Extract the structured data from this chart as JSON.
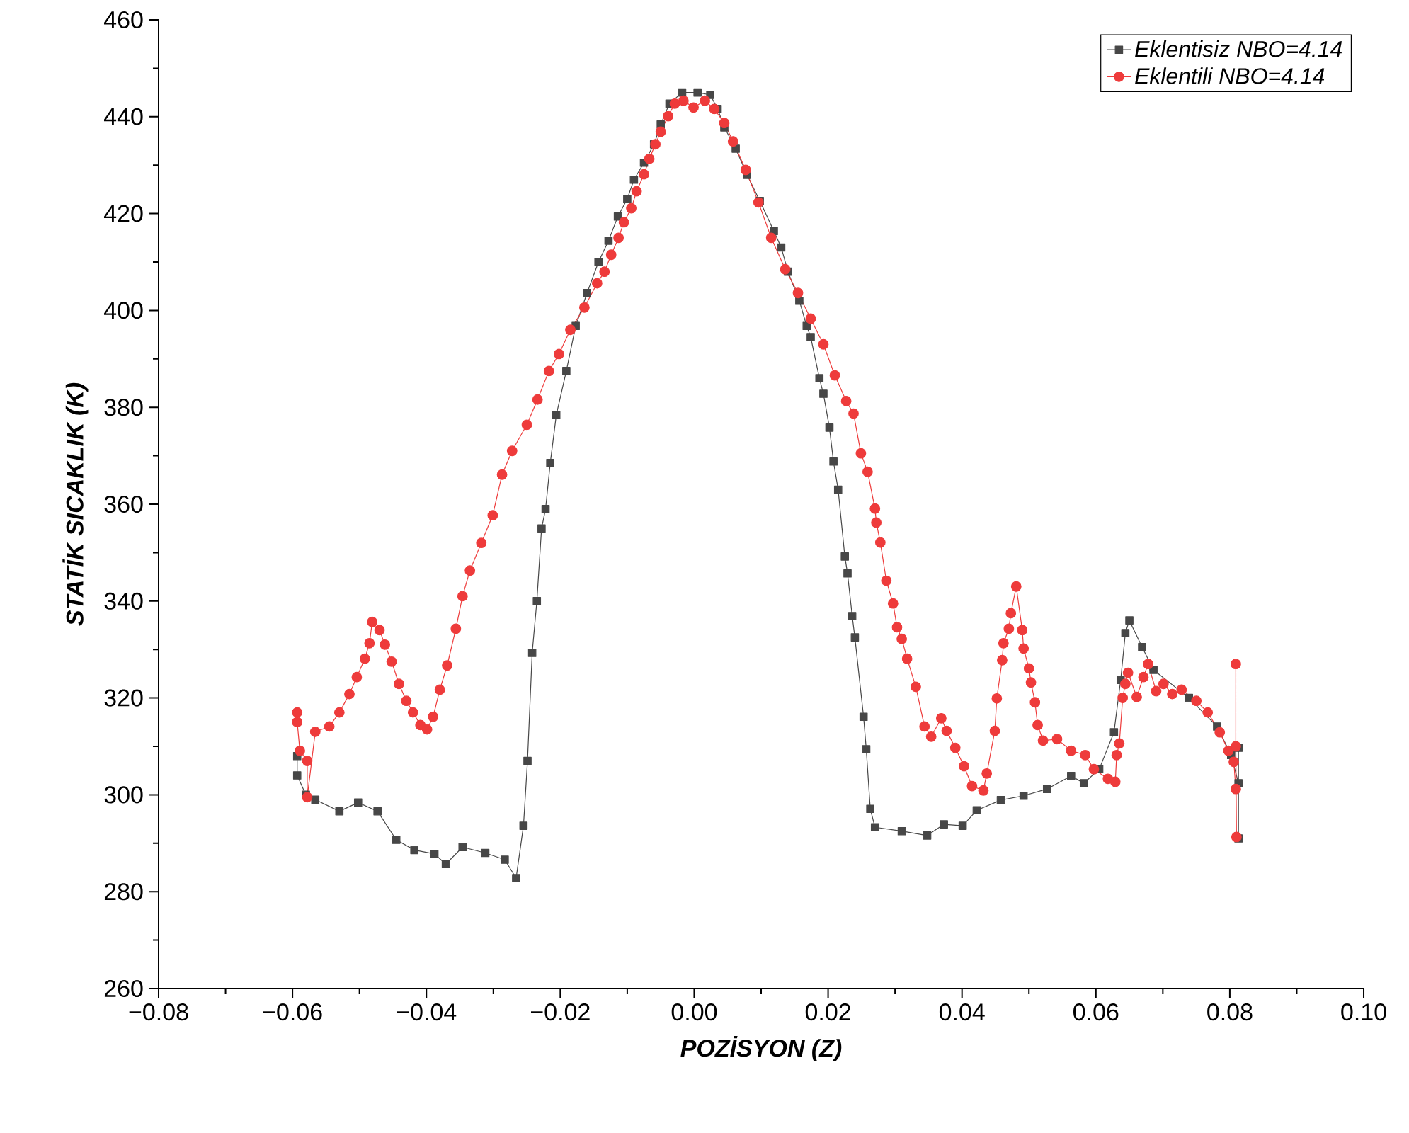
{
  "chart_data": {
    "type": "line",
    "xlabel": "POZİSYON (Z)",
    "ylabel": "STATİK SICAKLIK (K)",
    "xlim": [
      -0.08,
      0.1
    ],
    "ylim": [
      260,
      460
    ],
    "xticks": [
      {
        "value": -0.08,
        "label": "−0.08"
      },
      {
        "value": -0.06,
        "label": "−0.06"
      },
      {
        "value": -0.04,
        "label": "−0.04"
      },
      {
        "value": -0.02,
        "label": "−0.02"
      },
      {
        "value": 0,
        "label": "0.00"
      },
      {
        "value": 0.02,
        "label": "0.02"
      },
      {
        "value": 0.04,
        "label": "0.04"
      },
      {
        "value": 0.06,
        "label": "0.06"
      },
      {
        "value": 0.08,
        "label": "0.08"
      },
      {
        "value": 0.1,
        "label": "0.10"
      }
    ],
    "yticks": [
      260,
      280,
      300,
      320,
      340,
      360,
      380,
      400,
      420,
      440,
      460
    ],
    "grid": false,
    "legend": "top right",
    "line_style": "solid",
    "series": [
      {
        "name": "Eklentisiz NBO=4.14",
        "color": "#474747",
        "marker": "square",
        "x": [
          -0.0593,
          -0.0593,
          -0.058,
          -0.0566,
          -0.053,
          -0.0502,
          -0.0473,
          -0.0445,
          -0.0418,
          -0.0388,
          -0.0371,
          -0.0346,
          -0.0312,
          -0.0283,
          -0.0266,
          -0.0255,
          -0.0249,
          -0.0242,
          -0.0235,
          -0.0228,
          -0.0222,
          -0.0215,
          -0.0206,
          -0.0191,
          -0.0177,
          -0.016,
          -0.0143,
          -0.0128,
          -0.0114,
          -0.01,
          -0.009,
          -0.0075,
          -0.006,
          -0.005,
          -0.0037,
          -0.0018,
          0.0005,
          0.0024,
          0.0035,
          0.0045,
          0.0062,
          0.0079,
          0.0098,
          0.0119,
          0.013,
          0.014,
          0.0157,
          0.0168,
          0.0174,
          0.0187,
          0.0193,
          0.0202,
          0.0208,
          0.0215,
          0.0225,
          0.0229,
          0.0236,
          0.024,
          0.0253,
          0.0257,
          0.0263,
          0.027,
          0.031,
          0.0348,
          0.0373,
          0.0401,
          0.0422,
          0.0458,
          0.0492,
          0.0527,
          0.0563,
          0.0582,
          0.0605,
          0.0627,
          0.0637,
          0.0644,
          0.065,
          0.0669,
          0.0686,
          0.0739,
          0.0781,
          0.0802,
          0.0813,
          0.0813,
          0.0813
        ],
        "values": [
          308,
          304,
          300,
          299,
          296.6,
          298.4,
          296.6,
          290.7,
          288.6,
          287.8,
          285.7,
          289.2,
          288,
          286.6,
          282.8,
          293.6,
          307,
          329.3,
          340,
          355,
          359,
          368.5,
          378.4,
          387.5,
          396.8,
          403.6,
          410,
          414.4,
          419.4,
          423,
          427,
          430.5,
          434.3,
          438.4,
          442.7,
          445,
          445,
          444.5,
          441.6,
          437.8,
          433.4,
          428,
          422.6,
          416.4,
          413,
          408,
          402,
          396.8,
          394.5,
          386,
          382.8,
          375.8,
          368.8,
          363,
          349.2,
          345.7,
          336.9,
          332.5,
          316.1,
          309.4,
          297.1,
          293.3,
          292.5,
          291.6,
          293.9,
          293.6,
          296.8,
          298.9,
          299.8,
          301.2,
          303.9,
          302.4,
          305.3,
          312.9,
          323.7,
          333.4,
          336,
          330.5,
          325.8,
          320,
          314.1,
          308.2,
          302.4,
          291,
          309.7
        ]
      },
      {
        "name": "Eklentili NBO=4.14",
        "color": "#ee3b3b",
        "marker": "circle",
        "x": [
          -0.0593,
          -0.0593,
          -0.0589,
          -0.0578,
          -0.0578,
          -0.0566,
          -0.0545,
          -0.053,
          -0.0515,
          -0.0504,
          -0.0492,
          -0.0485,
          -0.0481,
          -0.047,
          -0.0462,
          -0.0452,
          -0.0441,
          -0.043,
          -0.042,
          -0.0409,
          -0.0399,
          -0.039,
          -0.038,
          -0.0369,
          -0.0356,
          -0.0346,
          -0.0335,
          -0.0318,
          -0.0301,
          -0.0287,
          -0.0272,
          -0.025,
          -0.0234,
          -0.0217,
          -0.0202,
          -0.0185,
          -0.0164,
          -0.0145,
          -0.0134,
          -0.0124,
          -0.0113,
          -0.0105,
          -0.0094,
          -0.0086,
          -0.0075,
          -0.0067,
          -0.0058,
          -0.005,
          -0.0039,
          -0.0029,
          -0.0016,
          -0.0001,
          0.0016,
          0.003,
          0.0045,
          0.0058,
          0.0077,
          0.0096,
          0.0115,
          0.0136,
          0.0155,
          0.0174,
          0.0193,
          0.021,
          0.0227,
          0.0238,
          0.0249,
          0.0259,
          0.027,
          0.0272,
          0.0278,
          0.0287,
          0.0297,
          0.0303,
          0.031,
          0.0318,
          0.0331,
          0.0344,
          0.0354,
          0.0369,
          0.0377,
          0.039,
          0.0403,
          0.0415,
          0.0432,
          0.0437,
          0.0449,
          0.0452,
          0.046,
          0.0462,
          0.047,
          0.0473,
          0.0481,
          0.049,
          0.0492,
          0.05,
          0.0503,
          0.0509,
          0.0513,
          0.0521,
          0.0542,
          0.0563,
          0.0584,
          0.0597,
          0.0618,
          0.0629,
          0.0631,
          0.0635,
          0.064,
          0.0644,
          0.0648,
          0.0661,
          0.0671,
          0.0678,
          0.069,
          0.0701,
          0.0714,
          0.0728,
          0.075,
          0.0767,
          0.0785,
          0.0798,
          0.0806,
          0.0809,
          0.081,
          0.0809,
          0.0809
        ],
        "values": [
          317,
          315,
          309.1,
          307,
          299.5,
          313,
          314.1,
          317,
          320.8,
          324.3,
          328.1,
          331.3,
          335.7,
          334,
          331,
          327.5,
          322.9,
          319.4,
          317,
          314.4,
          313.5,
          316.1,
          321.7,
          326.7,
          334.3,
          341,
          346.3,
          352,
          357.7,
          366.1,
          371,
          376.4,
          381.6,
          387.5,
          391,
          396,
          400.6,
          405.6,
          408,
          411.5,
          415,
          418.2,
          421.1,
          424.6,
          428.1,
          431.3,
          434.3,
          436.9,
          440.1,
          442.7,
          443.3,
          441.9,
          443.3,
          441.6,
          438.7,
          434.9,
          429,
          422.3,
          415,
          408.5,
          403.6,
          398.3,
          393,
          386.6,
          381.3,
          378.7,
          370.5,
          366.7,
          359.1,
          356.2,
          352.1,
          344.2,
          339.5,
          334.6,
          332.2,
          328.1,
          322.3,
          314.1,
          312,
          315.8,
          313.2,
          309.7,
          305.9,
          301.8,
          300.9,
          304.4,
          313.2,
          319.9,
          327.8,
          331.3,
          334.3,
          337.5,
          343,
          334,
          330.2,
          326.1,
          323.2,
          319.1,
          314.4,
          311.2,
          311.5,
          309.1,
          308.2,
          305.3,
          303.3,
          302.7,
          308.2,
          310.6,
          320,
          322.9,
          325.2,
          320.2,
          324.3,
          327,
          321.4,
          322.9,
          320.8,
          321.7,
          319.4,
          317,
          312.9,
          309.1,
          306.8,
          301.2,
          291.3,
          310,
          327
        ]
      }
    ]
  }
}
